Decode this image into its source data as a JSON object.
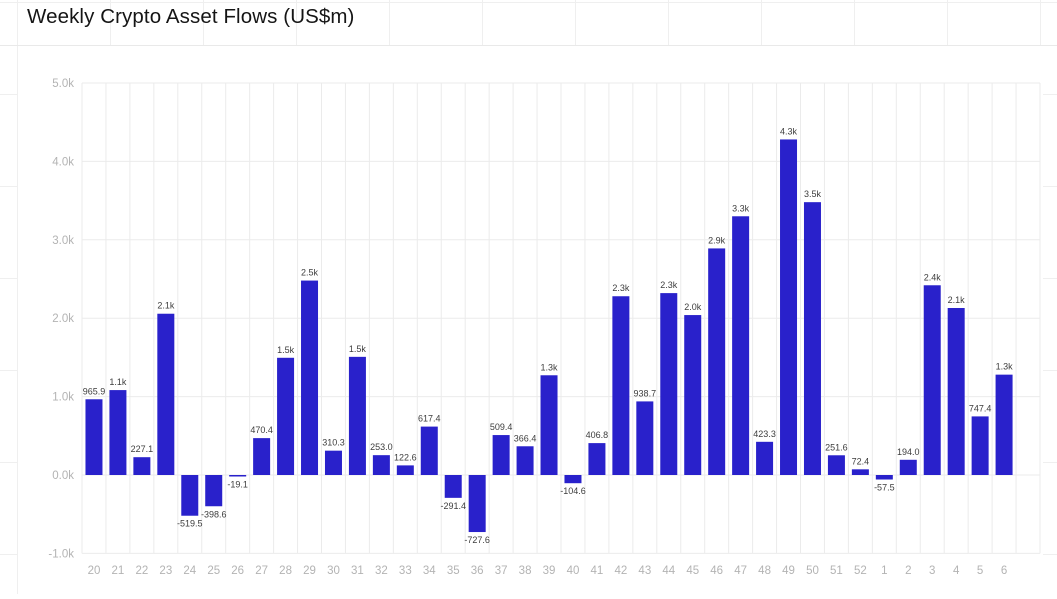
{
  "title": "Weekly Crypto Asset Flows (US$m)",
  "chart_data": {
    "type": "bar",
    "title": "Weekly Crypto Asset Flows (US$m)",
    "unit": "US$m",
    "categories": [
      "20",
      "21",
      "22",
      "23",
      "24",
      "25",
      "26",
      "27",
      "28",
      "29",
      "30",
      "31",
      "32",
      "33",
      "34",
      "35",
      "36",
      "37",
      "38",
      "39",
      "40",
      "41",
      "42",
      "43",
      "44",
      "45",
      "46",
      "47",
      "48",
      "49",
      "50",
      "51",
      "52",
      "1",
      "2",
      "3",
      "4",
      "5",
      "6"
    ],
    "values": [
      965.9,
      1083,
      227.1,
      2057,
      -519.5,
      -398.6,
      -19.1,
      470.4,
      1495,
      2480,
      310.3,
      1507,
      253.0,
      122.6,
      617.4,
      -291.4,
      -727.6,
      509.4,
      366.4,
      1272,
      -104.6,
      406.8,
      2280,
      938.7,
      2320,
      2040,
      2890,
      3300,
      423.3,
      4280,
      3480,
      251.6,
      72.4,
      -57.5,
      194.0,
      2420,
      2130,
      747.4,
      1280
    ],
    "labels": [
      "965.9",
      "1.1k",
      "227.1",
      "2.1k",
      "-519.5",
      "-398.6",
      "-19.1",
      "470.4",
      "1.5k",
      "2.5k",
      "310.3",
      "1.5k",
      "253.0",
      "122.6",
      "617.4",
      "-291.4",
      "-727.6",
      "509.4",
      "366.4",
      "1.3k",
      "-104.6",
      "406.8",
      "2.3k",
      "938.7",
      "2.3k",
      "2.0k",
      "2.9k",
      "3.3k",
      "423.3",
      "4.3k",
      "3.5k",
      "251.6",
      "72.4",
      "-57.5",
      "194.0",
      "2.4k",
      "2.1k",
      "747.4",
      "1.3k"
    ],
    "yticks": [
      [
        -1000,
        "-1.0k"
      ],
      [
        0,
        "0.0k"
      ],
      [
        1000,
        "1.0k"
      ],
      [
        2000,
        "2.0k"
      ],
      [
        3000,
        "3.0k"
      ],
      [
        4000,
        "4.0k"
      ],
      [
        5000,
        "5.0k"
      ]
    ],
    "ylim": [
      -1000,
      5000
    ],
    "grid": true,
    "legend": null,
    "xlabel": "",
    "ylabel": "",
    "colors": {
      "bar": "#2921CB",
      "grid_line": "#ebebeb",
      "axis_tick_text": "#b3b3b3",
      "value_label_text": "#3d3d3d",
      "title_text": "#151515",
      "background": "#ffffff"
    }
  }
}
